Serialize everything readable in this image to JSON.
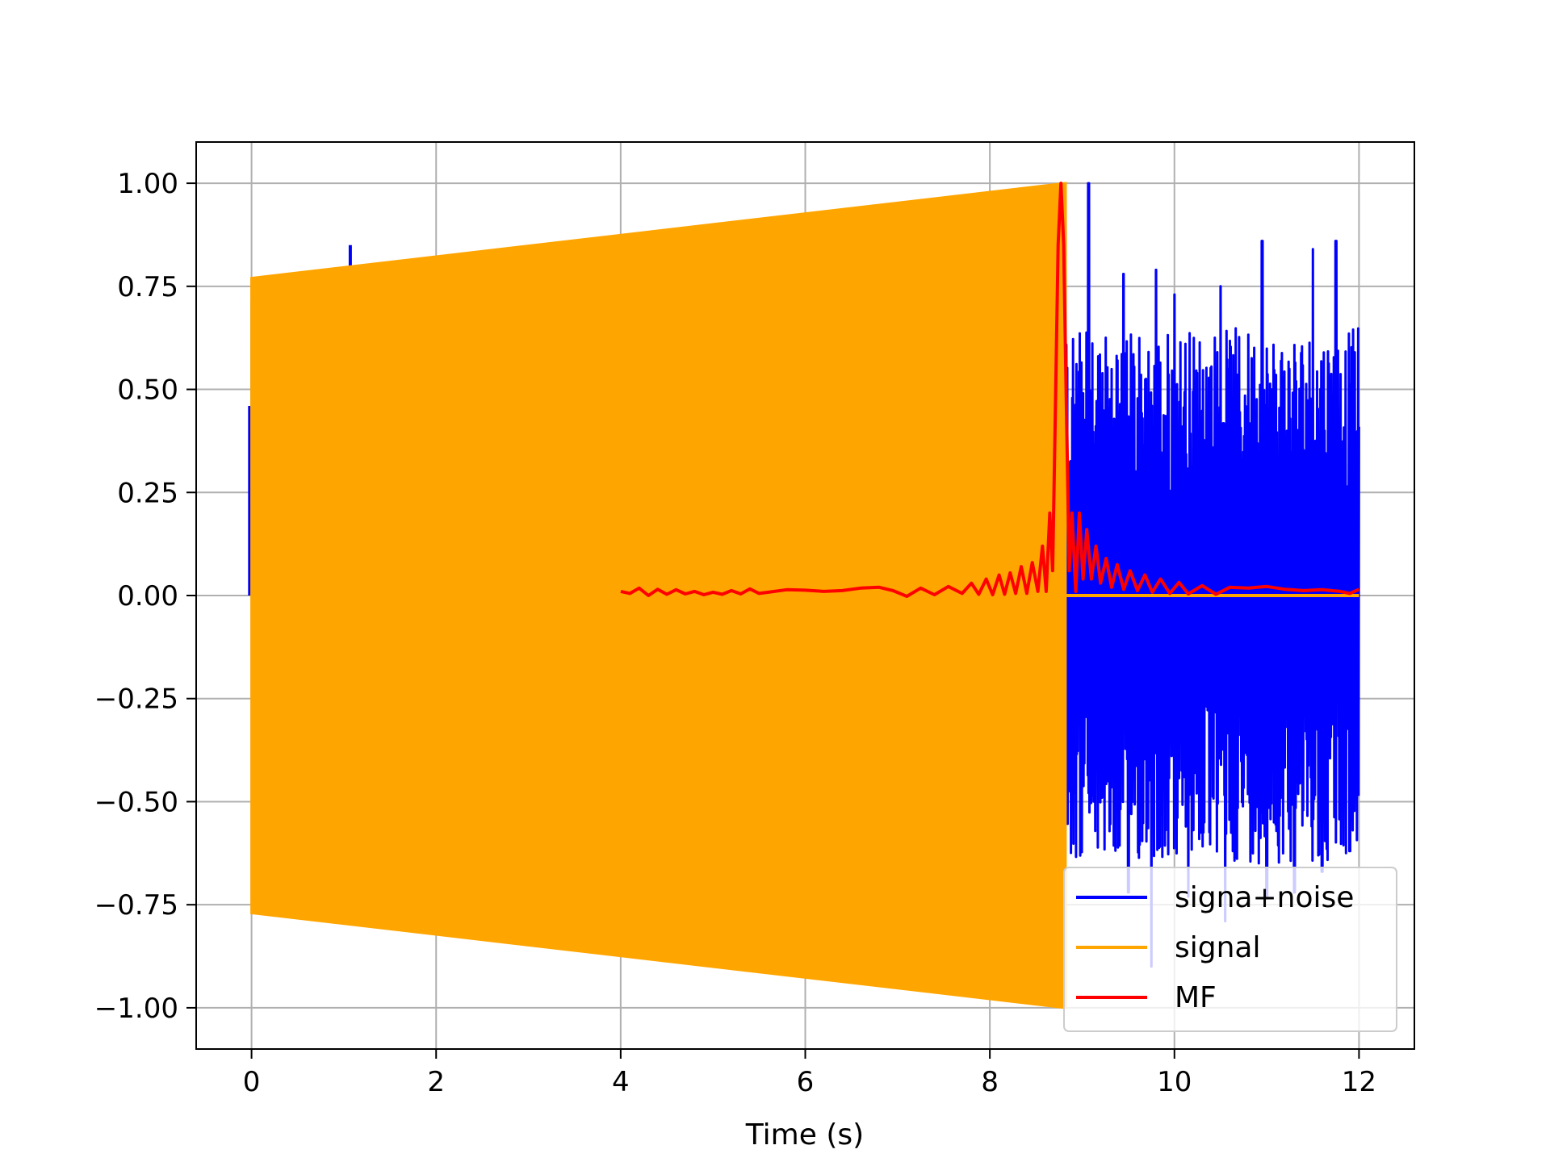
{
  "chart_data": {
    "type": "line",
    "title": "",
    "xlabel": "Time (s)",
    "ylabel": "",
    "xlim": [
      -0.6,
      12.6
    ],
    "ylim": [
      -1.1,
      1.1
    ],
    "grid": true,
    "legend_position": "lower-right",
    "x_ticks": [
      0,
      2,
      4,
      6,
      8,
      10,
      12
    ],
    "x_tick_labels": [
      "0",
      "2",
      "4",
      "6",
      "8",
      "10",
      "12"
    ],
    "y_ticks": [
      1.0,
      0.75,
      0.5,
      0.25,
      0.0,
      -0.25,
      -0.5,
      -0.75,
      -1.0
    ],
    "y_tick_labels": [
      "1.00",
      "0.75",
      "0.50",
      "0.25",
      "0.00",
      "−0.25",
      "−0.50",
      "−0.75",
      "−1.00"
    ],
    "series": [
      {
        "name": "signa+noise",
        "color": "#0000ff",
        "description_of_shape": "noisy waveform visible outside the orange chirp envelope; noise only after t=8.8",
        "start_x": 0.0,
        "signal_end_x": 8.82,
        "end_x": 12.0,
        "noise_peaks": [
          [
            9.07,
            1.0
          ],
          [
            9.45,
            0.78
          ],
          [
            9.8,
            0.79
          ],
          [
            10.0,
            0.73
          ],
          [
            10.5,
            0.75
          ],
          [
            10.95,
            0.86
          ],
          [
            11.5,
            0.84
          ],
          [
            11.75,
            0.86
          ],
          [
            11.95,
            0.59
          ]
        ],
        "noise_troughs": [
          [
            9.5,
            -0.72
          ],
          [
            9.75,
            -0.9
          ],
          [
            10.15,
            -0.73
          ],
          [
            10.55,
            -0.79
          ],
          [
            11.0,
            -0.73
          ],
          [
            11.3,
            -0.72
          ],
          [
            11.6,
            -0.67
          ],
          [
            11.9,
            -0.62
          ]
        ],
        "spikes": [
          [
            1.07,
            0.85
          ],
          [
            1.02,
            -0.79
          ],
          [
            4.7,
            -0.86
          ],
          [
            -0.02,
            0.46
          ]
        ]
      },
      {
        "name": "signal",
        "color": "#ffa500",
        "description_of_shape": "dense chirp with envelope growing from 0.77 to 1.0 between t=0 and t=8.82, then zero",
        "start_x": 0.0,
        "end_x": 8.82,
        "envelope_start": 0.77,
        "envelope_end": 1.0,
        "after_value": 0.0,
        "after_end_x": 12.0
      },
      {
        "name": "MF",
        "color": "#ff0000",
        "description_of_shape": "matched filter output; near zero from t=4 with a sharp peak of 1.0 at t=8.77",
        "points": [
          [
            4.0,
            0.01
          ],
          [
            4.1,
            0.005
          ],
          [
            4.2,
            0.018
          ],
          [
            4.3,
            0.0
          ],
          [
            4.4,
            0.015
          ],
          [
            4.5,
            0.003
          ],
          [
            4.6,
            0.014
          ],
          [
            4.7,
            0.004
          ],
          [
            4.8,
            0.01
          ],
          [
            4.9,
            0.002
          ],
          [
            5.0,
            0.008
          ],
          [
            5.1,
            0.003
          ],
          [
            5.2,
            0.012
          ],
          [
            5.3,
            0.004
          ],
          [
            5.4,
            0.016
          ],
          [
            5.5,
            0.005
          ],
          [
            5.6,
            0.008
          ],
          [
            5.8,
            0.014
          ],
          [
            6.0,
            0.013
          ],
          [
            6.2,
            0.01
          ],
          [
            6.4,
            0.012
          ],
          [
            6.6,
            0.018
          ],
          [
            6.8,
            0.02
          ],
          [
            6.95,
            0.012
          ],
          [
            7.1,
            -0.002
          ],
          [
            7.25,
            0.018
          ],
          [
            7.4,
            0.002
          ],
          [
            7.55,
            0.022
          ],
          [
            7.7,
            0.005
          ],
          [
            7.8,
            0.03
          ],
          [
            7.88,
            0.003
          ],
          [
            7.96,
            0.04
          ],
          [
            8.03,
            0.002
          ],
          [
            8.1,
            0.05
          ],
          [
            8.16,
            0.003
          ],
          [
            8.22,
            0.055
          ],
          [
            8.28,
            0.005
          ],
          [
            8.34,
            0.07
          ],
          [
            8.4,
            0.005
          ],
          [
            8.46,
            0.08
          ],
          [
            8.52,
            0.01
          ],
          [
            8.57,
            0.12
          ],
          [
            8.61,
            0.01
          ],
          [
            8.65,
            0.2
          ],
          [
            8.68,
            0.06
          ],
          [
            8.71,
            0.45
          ],
          [
            8.74,
            0.85
          ],
          [
            8.77,
            1.0
          ],
          [
            8.8,
            0.85
          ],
          [
            8.83,
            0.45
          ],
          [
            8.86,
            0.06
          ],
          [
            8.89,
            0.2
          ],
          [
            8.93,
            0.01
          ],
          [
            8.97,
            0.2
          ],
          [
            9.01,
            0.04
          ],
          [
            9.05,
            0.16
          ],
          [
            9.1,
            0.04
          ],
          [
            9.15,
            0.12
          ],
          [
            9.2,
            0.03
          ],
          [
            9.26,
            0.09
          ],
          [
            9.32,
            0.02
          ],
          [
            9.38,
            0.075
          ],
          [
            9.45,
            0.015
          ],
          [
            9.52,
            0.06
          ],
          [
            9.6,
            0.012
          ],
          [
            9.68,
            0.05
          ],
          [
            9.76,
            0.008
          ],
          [
            9.85,
            0.04
          ],
          [
            9.95,
            0.005
          ],
          [
            10.05,
            0.032
          ],
          [
            10.15,
            0.004
          ],
          [
            10.3,
            0.024
          ],
          [
            10.45,
            0.003
          ],
          [
            10.6,
            0.02
          ],
          [
            10.8,
            0.018
          ],
          [
            11.0,
            0.022
          ],
          [
            11.2,
            0.015
          ],
          [
            11.4,
            0.012
          ],
          [
            11.6,
            0.014
          ],
          [
            11.8,
            0.01
          ],
          [
            11.9,
            0.005
          ],
          [
            12.0,
            0.015
          ]
        ]
      }
    ]
  }
}
